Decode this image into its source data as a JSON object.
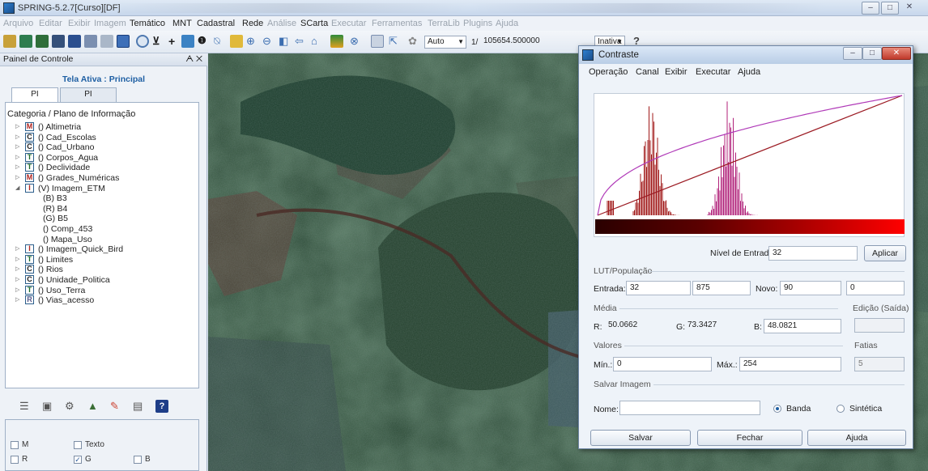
{
  "app": {
    "title": "SPRING-5.2.7[Curso][DF]",
    "menu": [
      "Arquivo",
      "Editar",
      "Exibir",
      "Imagem",
      "Temático",
      "MNT",
      "Cadastral",
      "Rede",
      "Análise",
      "SCarta",
      "Executar",
      "Ferramentas",
      "TerraLib",
      "Plugins",
      "Ajuda"
    ],
    "toolbar": {
      "mode": "Auto",
      "scale_prefix": "1/",
      "scale_value": "105654.500000",
      "status": "Inativa"
    }
  },
  "panel": {
    "title": "Painel de Controle",
    "active_screen": "Tela Ativa : Principal",
    "tabs": [
      "PI Disponíveis",
      "PI Selecionados"
    ],
    "tree_header": "Categoria / Plano de Informação",
    "tree": [
      {
        "icon": "M",
        "label": "() Altimetria",
        "expanded": false
      },
      {
        "icon": "C",
        "label": "() Cad_Escolas",
        "expanded": false
      },
      {
        "icon": "C",
        "label": "() Cad_Urbano",
        "expanded": false
      },
      {
        "icon": "T",
        "label": "() Corpos_Agua",
        "expanded": false
      },
      {
        "icon": "T",
        "label": "() Declividade",
        "expanded": false
      },
      {
        "icon": "M",
        "label": "() Grades_Numéricas",
        "expanded": false
      },
      {
        "icon": "I",
        "label": "(V) Imagem_ETM",
        "expanded": true
      },
      {
        "child": true,
        "label": "(B) B3"
      },
      {
        "child": true,
        "label": "(R) B4"
      },
      {
        "child": true,
        "label": "(G) B5",
        "selected": true
      },
      {
        "child": true,
        "label": "() Comp_453"
      },
      {
        "child": true,
        "label": "() Mapa_Uso"
      },
      {
        "icon": "I",
        "label": "() Imagem_Quick_Bird",
        "expanded": false
      },
      {
        "icon": "T",
        "label": "() Limites",
        "expanded": false
      },
      {
        "icon": "C",
        "label": "() Rios",
        "expanded": false
      },
      {
        "icon": "C",
        "label": "() Unidade_Politica",
        "expanded": false
      },
      {
        "icon": "T",
        "label": "() Uso_Terra",
        "expanded": false
      },
      {
        "icon": "R",
        "label": "() Vias_acesso",
        "expanded": false
      }
    ],
    "checks": {
      "m": "M",
      "texto": "Texto",
      "r": "R",
      "g": "G",
      "b": "B"
    }
  },
  "dialog": {
    "title": "Contraste",
    "menu": [
      "Operação",
      "Canal",
      "Exibir",
      "Executar",
      "Ajuda"
    ],
    "nivel_label": "Nível de Entrada:",
    "nivel_value": "32",
    "aplicar": "Aplicar",
    "lut_title": "LUT/População",
    "entrada_label": "Entrada:",
    "entrada_value": "32",
    "populacao_value": "875",
    "novo_label": "Novo:",
    "novo_value": "90",
    "novo_value2": "0",
    "media_title": "Média",
    "edicao_title": "Edição (Saída)",
    "r_label": "R:",
    "r_value": "50.0662",
    "g_label": "G:",
    "g_value": "73.3427",
    "b_label": "B:",
    "b_value": "48.0821",
    "valores_title": "Valores",
    "fatias_title": "Fatias",
    "min_label": "Mín.:",
    "min_value": "0",
    "max_label": "Máx.:",
    "max_value": "254",
    "fatias_value": "5",
    "salvar_title": "Salvar Imagem",
    "nome_label": "Nome:",
    "banda": "Banda",
    "sintetica": "Sintética",
    "btn_salvar": "Salvar",
    "btn_fechar": "Fechar",
    "btn_ajuda": "Ajuda"
  }
}
